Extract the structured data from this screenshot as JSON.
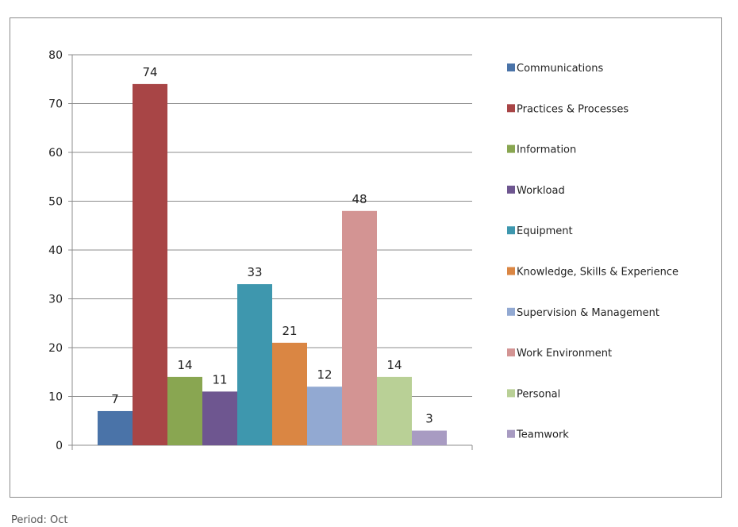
{
  "chart_data": {
    "type": "bar",
    "title": "",
    "xlabel": "",
    "ylabel": "",
    "ylim": [
      0,
      80
    ],
    "yticks": [
      0,
      10,
      20,
      30,
      40,
      50,
      60,
      70,
      80
    ],
    "grid": true,
    "legend_position": "right",
    "series": [
      {
        "name": "Communications",
        "value": 7,
        "color": "#4a73a8"
      },
      {
        "name": "Practices & Processes",
        "value": 74,
        "color": "#a84546"
      },
      {
        "name": "Information",
        "value": 14,
        "color": "#89a651"
      },
      {
        "name": "Workload",
        "value": 11,
        "color": "#6e5690"
      },
      {
        "name": "Equipment",
        "value": 33,
        "color": "#3e97ae"
      },
      {
        "name": "Knowledge, Skills & Experience",
        "value": 21,
        "color": "#da8643"
      },
      {
        "name": "Supervision & Management",
        "value": 12,
        "color": "#92a9d2"
      },
      {
        "name": "Work Environment",
        "value": 48,
        "color": "#d39493"
      },
      {
        "name": "Personal",
        "value": 14,
        "color": "#b9d096"
      },
      {
        "name": "Teamwork",
        "value": 3,
        "color": "#a89bc2"
      }
    ]
  },
  "footer_text": "Period: Oct"
}
